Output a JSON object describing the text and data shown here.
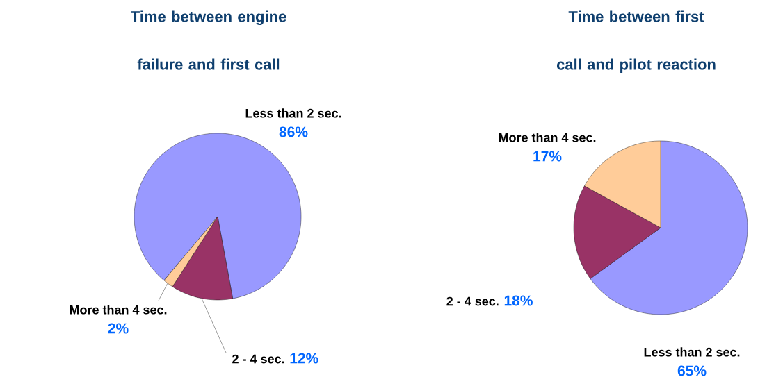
{
  "chart_data": [
    {
      "type": "pie",
      "title": "Time between engine failure and first call",
      "categories": [
        "Less than 2 sec.",
        "2 - 4 sec.",
        "More than 4 sec."
      ],
      "values": [
        86,
        12,
        2
      ],
      "value_labels": [
        "86%",
        "12%",
        "2%"
      ],
      "colors": [
        "#9999ff",
        "#993366",
        "#ffcc99"
      ]
    },
    {
      "type": "pie",
      "title": "Time between first call and pilot reaction",
      "categories": [
        "Less than 2 sec.",
        "2 - 4 sec.",
        "More than 4 sec."
      ],
      "values": [
        65,
        18,
        17
      ],
      "value_labels": [
        "65%",
        "18%",
        "17%"
      ],
      "colors": [
        "#9999ff",
        "#993366",
        "#ffcc99"
      ]
    }
  ]
}
